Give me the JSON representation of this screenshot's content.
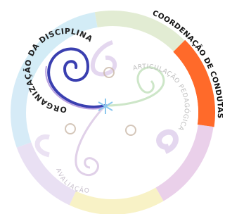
{
  "labels": [
    "ORGANIZAÇÃO DA DISCIPLINA",
    "COORDENAÇÃO DE CONDUTAS",
    "ARTICULAÇÃO PEDAGÓGICA",
    "AVALIAÇÃO"
  ]
}
